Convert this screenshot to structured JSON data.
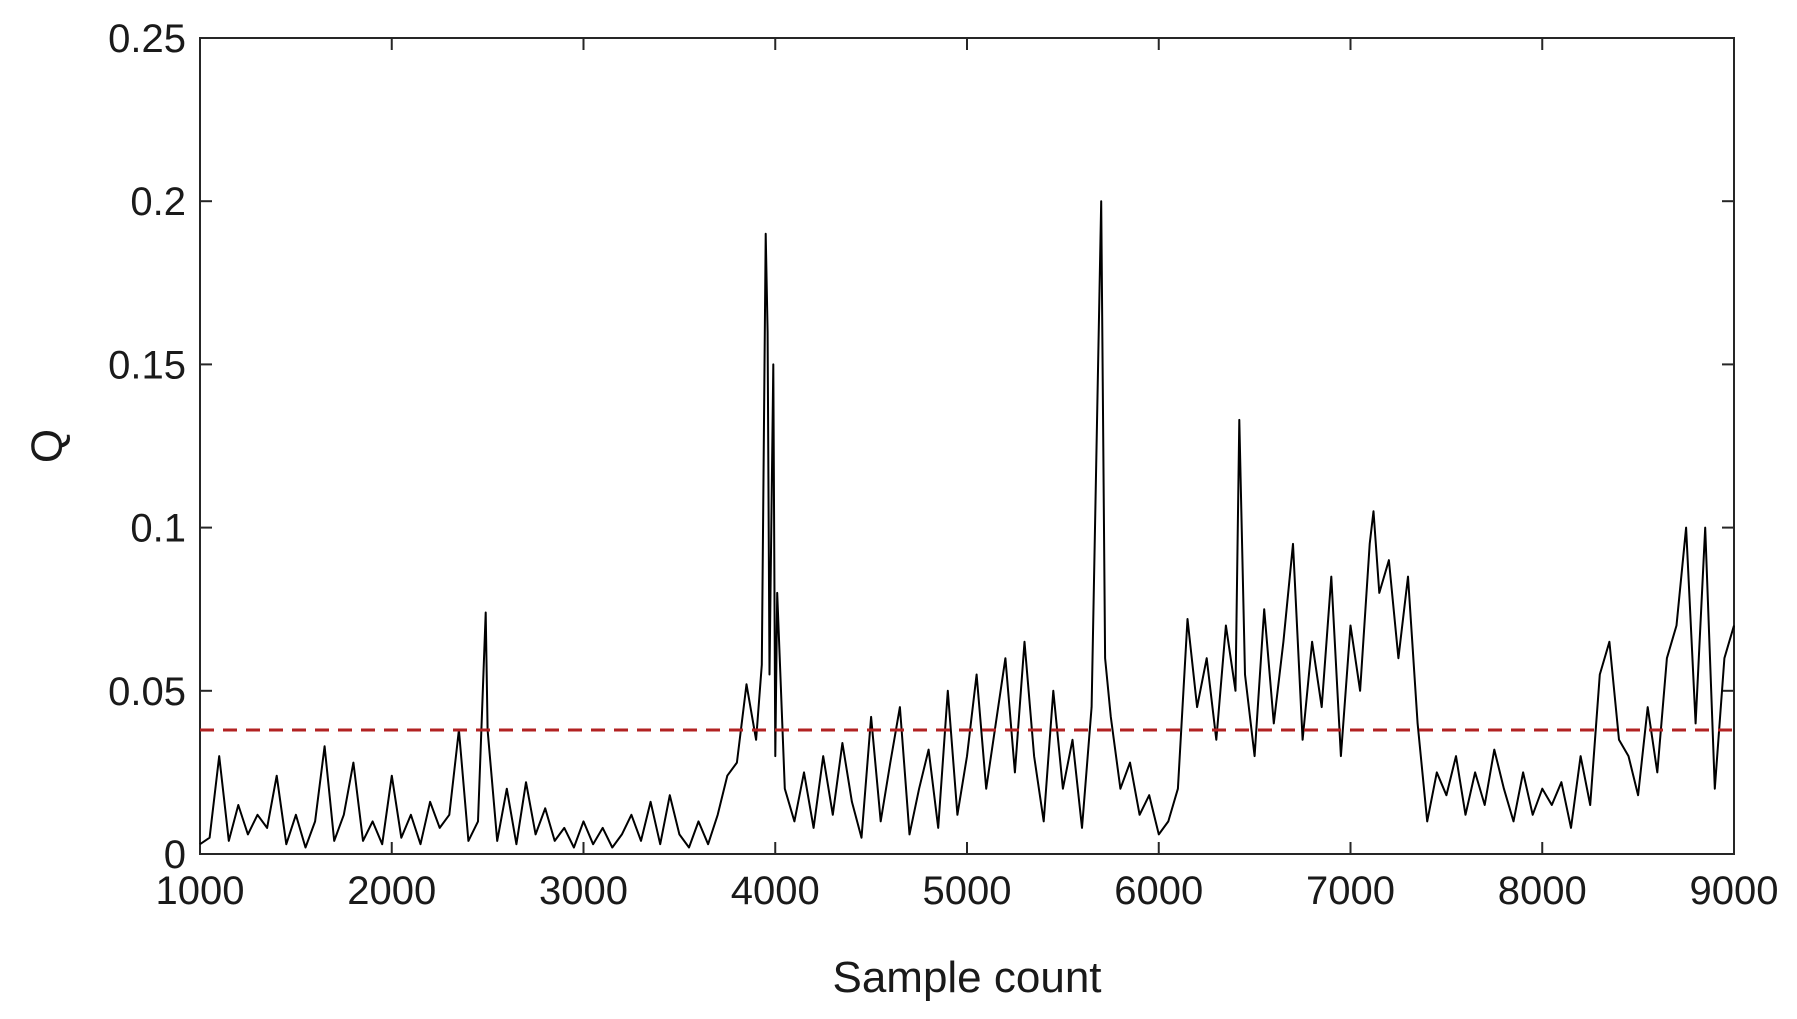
{
  "chart_data": {
    "type": "line",
    "title": "",
    "xlabel": "Sample count",
    "ylabel": "Q",
    "xlim": [
      1000,
      9000
    ],
    "ylim": [
      0,
      0.25
    ],
    "x_ticks": [
      1000,
      2000,
      3000,
      4000,
      5000,
      6000,
      7000,
      8000,
      9000
    ],
    "x_tick_labels": [
      "1000",
      "2000",
      "3000",
      "4000",
      "5000",
      "6000",
      "7000",
      "8000",
      "9000"
    ],
    "y_ticks": [
      0,
      0.05,
      0.1,
      0.15,
      0.2,
      0.25
    ],
    "y_tick_labels": [
      "0",
      "0.05",
      "0.1",
      "0.15",
      "0.2",
      "0.25"
    ],
    "grid": false,
    "legend": "none",
    "series": [
      {
        "line_color": "#000000",
        "style": "solid",
        "x": [
          1000,
          1050,
          1100,
          1150,
          1200,
          1250,
          1300,
          1350,
          1400,
          1450,
          1500,
          1550,
          1600,
          1650,
          1700,
          1750,
          1800,
          1850,
          1900,
          1950,
          2000,
          2050,
          2100,
          2150,
          2200,
          2250,
          2300,
          2350,
          2400,
          2450,
          2490,
          2500,
          2550,
          2600,
          2650,
          2700,
          2750,
          2800,
          2850,
          2900,
          2950,
          3000,
          3050,
          3100,
          3150,
          3200,
          3250,
          3300,
          3350,
          3400,
          3450,
          3500,
          3550,
          3600,
          3650,
          3700,
          3750,
          3800,
          3850,
          3900,
          3930,
          3950,
          3960,
          3970,
          3990,
          4000,
          4010,
          4050,
          4100,
          4150,
          4200,
          4250,
          4300,
          4350,
          4400,
          4450,
          4500,
          4550,
          4600,
          4650,
          4700,
          4750,
          4800,
          4850,
          4900,
          4950,
          5000,
          5050,
          5100,
          5150,
          5200,
          5250,
          5300,
          5350,
          5400,
          5450,
          5500,
          5550,
          5600,
          5650,
          5700,
          5720,
          5750,
          5800,
          5850,
          5900,
          5950,
          6000,
          6050,
          6100,
          6150,
          6200,
          6250,
          6300,
          6350,
          6400,
          6420,
          6450,
          6500,
          6550,
          6600,
          6650,
          6700,
          6750,
          6800,
          6850,
          6900,
          6950,
          7000,
          7050,
          7100,
          7120,
          7150,
          7200,
          7250,
          7300,
          7350,
          7400,
          7450,
          7500,
          7550,
          7600,
          7650,
          7700,
          7750,
          7800,
          7850,
          7900,
          7950,
          8000,
          8050,
          8100,
          8150,
          8200,
          8250,
          8300,
          8350,
          8400,
          8450,
          8500,
          8550,
          8600,
          8650,
          8700,
          8750,
          8800,
          8850,
          8900,
          8950,
          9000
        ],
        "y": [
          0.003,
          0.005,
          0.03,
          0.004,
          0.015,
          0.006,
          0.012,
          0.008,
          0.024,
          0.003,
          0.012,
          0.002,
          0.01,
          0.033,
          0.004,
          0.012,
          0.028,
          0.004,
          0.01,
          0.003,
          0.024,
          0.005,
          0.012,
          0.003,
          0.016,
          0.008,
          0.012,
          0.038,
          0.004,
          0.01,
          0.074,
          0.038,
          0.004,
          0.02,
          0.003,
          0.022,
          0.006,
          0.014,
          0.004,
          0.008,
          0.002,
          0.01,
          0.003,
          0.008,
          0.002,
          0.006,
          0.012,
          0.004,
          0.016,
          0.003,
          0.018,
          0.006,
          0.002,
          0.01,
          0.003,
          0.012,
          0.024,
          0.028,
          0.052,
          0.035,
          0.058,
          0.19,
          0.16,
          0.055,
          0.15,
          0.03,
          0.08,
          0.02,
          0.01,
          0.025,
          0.008,
          0.03,
          0.012,
          0.034,
          0.016,
          0.005,
          0.042,
          0.01,
          0.028,
          0.045,
          0.006,
          0.02,
          0.032,
          0.008,
          0.05,
          0.012,
          0.03,
          0.055,
          0.02,
          0.04,
          0.06,
          0.025,
          0.065,
          0.03,
          0.01,
          0.05,
          0.02,
          0.035,
          0.008,
          0.045,
          0.2,
          0.06,
          0.042,
          0.02,
          0.028,
          0.012,
          0.018,
          0.006,
          0.01,
          0.02,
          0.072,
          0.045,
          0.06,
          0.035,
          0.07,
          0.05,
          0.133,
          0.055,
          0.03,
          0.075,
          0.04,
          0.065,
          0.095,
          0.035,
          0.065,
          0.045,
          0.085,
          0.03,
          0.07,
          0.05,
          0.095,
          0.105,
          0.08,
          0.09,
          0.06,
          0.085,
          0.04,
          0.01,
          0.025,
          0.018,
          0.03,
          0.012,
          0.025,
          0.015,
          0.032,
          0.02,
          0.01,
          0.025,
          0.012,
          0.02,
          0.015,
          0.022,
          0.008,
          0.03,
          0.015,
          0.055,
          0.065,
          0.035,
          0.03,
          0.018,
          0.045,
          0.025,
          0.06,
          0.07,
          0.1,
          0.04,
          0.1,
          0.02,
          0.06,
          0.07
        ]
      },
      {
        "line_color": "#b22222",
        "style": "dashed",
        "x": [
          1000,
          9000
        ],
        "y": [
          0.038,
          0.038
        ]
      }
    ]
  }
}
